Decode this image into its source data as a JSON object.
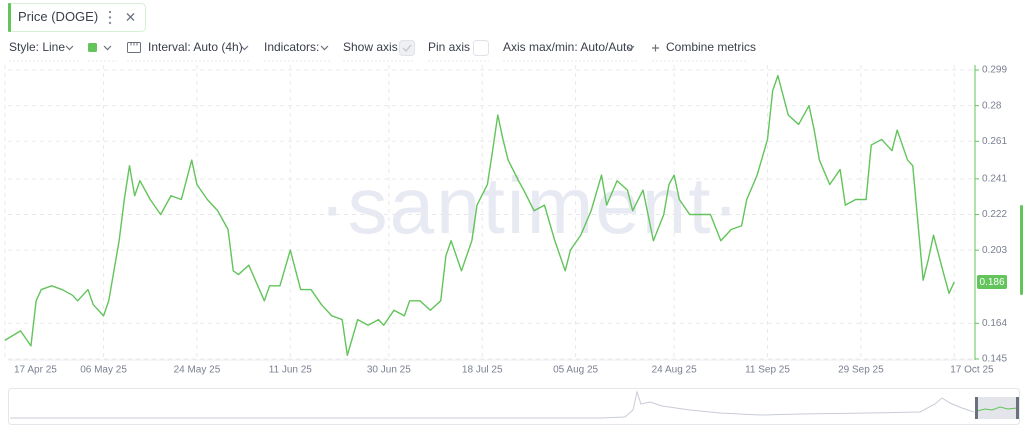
{
  "toolbar": {
    "metric": "Price (DOGE)",
    "style": "Style: Line",
    "interval": "Interval: Auto (4h)",
    "indicators": "Indicators:",
    "show_axis": "Show axis",
    "pin_axis": "Pin axis",
    "axis_minmax": "Axis max/min: Auto/Auto",
    "combine": "Combine metrics"
  },
  "chart_data": {
    "type": "line",
    "watermark": "·santiment·",
    "x": [
      "2025-04-17",
      "2025-04-20",
      "2025-04-22",
      "2025-04-23",
      "2025-04-24",
      "2025-04-26",
      "2025-04-28",
      "2025-04-30",
      "2025-05-01",
      "2025-05-03",
      "2025-05-04",
      "2025-05-06",
      "2025-05-07",
      "2025-05-08",
      "2025-05-09",
      "2025-05-10",
      "2025-05-11",
      "2025-05-12",
      "2025-05-13",
      "2025-05-15",
      "2025-05-17",
      "2025-05-19",
      "2025-05-21",
      "2025-05-23",
      "2025-05-24",
      "2025-05-26",
      "2025-05-28",
      "2025-05-30",
      "2025-05-31",
      "2025-06-01",
      "2025-06-03",
      "2025-06-06",
      "2025-06-07",
      "2025-06-09",
      "2025-06-11",
      "2025-06-13",
      "2025-06-15",
      "2025-06-17",
      "2025-06-19",
      "2025-06-21",
      "2025-06-22",
      "2025-06-24",
      "2025-06-26",
      "2025-06-28",
      "2025-06-29",
      "2025-07-01",
      "2025-07-03",
      "2025-07-04",
      "2025-07-06",
      "2025-07-08",
      "2025-07-10",
      "2025-07-11",
      "2025-07-12",
      "2025-07-14",
      "2025-07-15",
      "2025-07-16",
      "2025-07-17",
      "2025-07-19",
      "2025-07-20",
      "2025-07-21",
      "2025-07-22",
      "2025-07-23",
      "2025-07-25",
      "2025-07-26",
      "2025-07-28",
      "2025-07-30",
      "2025-08-01",
      "2025-08-03",
      "2025-08-04",
      "2025-08-06",
      "2025-08-08",
      "2025-08-10",
      "2025-08-11",
      "2025-08-13",
      "2025-08-15",
      "2025-08-16",
      "2025-08-18",
      "2025-08-20",
      "2025-08-22",
      "2025-08-23",
      "2025-08-24",
      "2025-08-25",
      "2025-08-27",
      "2025-08-29",
      "2025-08-31",
      "2025-09-02",
      "2025-09-04",
      "2025-09-06",
      "2025-09-07",
      "2025-09-09",
      "2025-09-11",
      "2025-09-12",
      "2025-09-13",
      "2025-09-15",
      "2025-09-17",
      "2025-09-19",
      "2025-09-20",
      "2025-09-21",
      "2025-09-23",
      "2025-09-25",
      "2025-09-26",
      "2025-09-28",
      "2025-09-30",
      "2025-10-01",
      "2025-10-03",
      "2025-10-05",
      "2025-10-06",
      "2025-10-08",
      "2025-10-09",
      "2025-10-11",
      "2025-10-12",
      "2025-10-13",
      "2025-10-15",
      "2025-10-16",
      "2025-10-17"
    ],
    "series": [
      {
        "name": "Price (DOGE)",
        "color": "#62c45a",
        "values": [
          0.155,
          0.16,
          0.152,
          0.176,
          0.182,
          0.184,
          0.182,
          0.179,
          0.176,
          0.182,
          0.174,
          0.168,
          0.176,
          0.192,
          0.208,
          0.23,
          0.248,
          0.232,
          0.24,
          0.23,
          0.222,
          0.232,
          0.23,
          0.251,
          0.238,
          0.23,
          0.224,
          0.214,
          0.192,
          0.19,
          0.195,
          0.176,
          0.184,
          0.184,
          0.203,
          0.182,
          0.182,
          0.174,
          0.168,
          0.166,
          0.147,
          0.166,
          0.163,
          0.166,
          0.163,
          0.171,
          0.168,
          0.176,
          0.176,
          0.171,
          0.176,
          0.2,
          0.208,
          0.192,
          0.2,
          0.208,
          0.227,
          0.238,
          0.256,
          0.275,
          0.262,
          0.251,
          0.24,
          0.235,
          0.224,
          0.227,
          0.208,
          0.192,
          0.203,
          0.211,
          0.224,
          0.243,
          0.227,
          0.24,
          0.235,
          0.224,
          0.235,
          0.208,
          0.222,
          0.238,
          0.243,
          0.23,
          0.222,
          0.222,
          0.222,
          0.208,
          0.214,
          0.216,
          0.23,
          0.243,
          0.262,
          0.288,
          0.296,
          0.275,
          0.27,
          0.28,
          0.267,
          0.251,
          0.238,
          0.246,
          0.227,
          0.23,
          0.23,
          0.259,
          0.262,
          0.256,
          0.267,
          0.251,
          0.248,
          0.187,
          0.198,
          0.211,
          0.19,
          0.18,
          0.186
        ]
      }
    ],
    "xlim": [
      "2025-04-17",
      "2025-10-21"
    ],
    "xticks": [
      {
        "value": "2025-04-17",
        "label": "17 Apr 25"
      },
      {
        "value": "2025-05-06",
        "label": "06 May 25"
      },
      {
        "value": "2025-05-24",
        "label": "24 May 25"
      },
      {
        "value": "2025-06-11",
        "label": "11 Jun 25"
      },
      {
        "value": "2025-06-30",
        "label": "30 Jun 25"
      },
      {
        "value": "2025-07-18",
        "label": "18 Jul 25"
      },
      {
        "value": "2025-08-05",
        "label": "05 Aug 25"
      },
      {
        "value": "2025-08-24",
        "label": "24 Aug 25"
      },
      {
        "value": "2025-09-11",
        "label": "11 Sep 25"
      },
      {
        "value": "2025-09-29",
        "label": "29 Sep 25"
      },
      {
        "value": "2025-10-17",
        "label": "17 Oct 25"
      }
    ],
    "ylim": [
      0.145,
      0.299
    ],
    "yticks": [
      0.145,
      0.164,
      0.203,
      0.222,
      0.241,
      0.261,
      0.28,
      0.299
    ],
    "grid": true
  }
}
